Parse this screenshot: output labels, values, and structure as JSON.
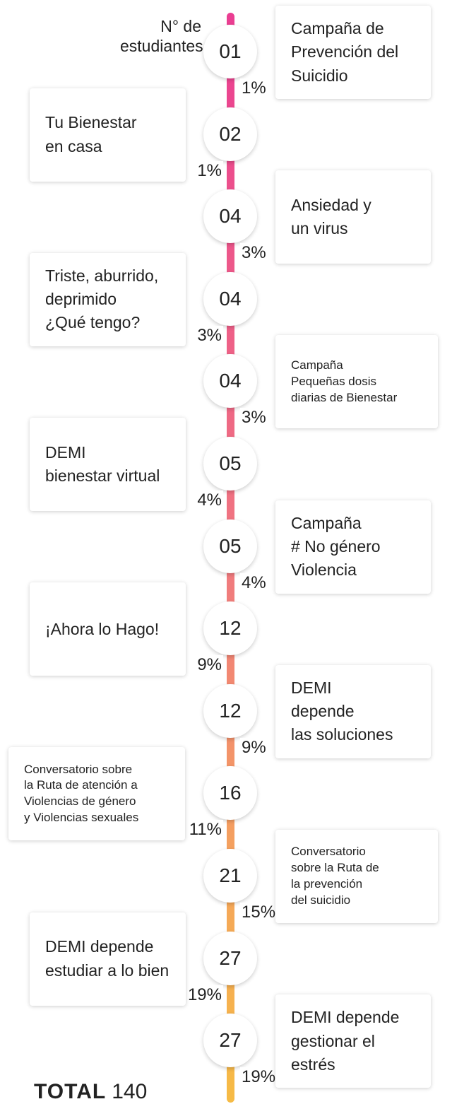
{
  "header": {
    "lines": [
      "N° de",
      "estudiantes"
    ]
  },
  "items": [
    {
      "count": "01",
      "percent": "1%",
      "lines": [
        "Campaña de",
        "Prevención del",
        "Suicidio"
      ]
    },
    {
      "count": "02",
      "percent": "1%",
      "lines": [
        "Tu Bienestar",
        "en casa"
      ]
    },
    {
      "count": "04",
      "percent": "3%",
      "lines": [
        "Ansiedad y",
        "un virus"
      ]
    },
    {
      "count": "04",
      "percent": "3%",
      "lines": [
        "Triste, aburrido,",
        "deprimido",
        "¿Qué tengo?"
      ]
    },
    {
      "count": "04",
      "percent": "3%",
      "lines": [
        "Campaña",
        "Pequeñas dosis",
        "diarias de Bienestar"
      ]
    },
    {
      "count": "05",
      "percent": "4%",
      "lines": [
        "DEMI",
        "bienestar virtual"
      ]
    },
    {
      "count": "05",
      "percent": "4%",
      "lines": [
        "Campaña",
        "# No género",
        "Violencia"
      ]
    },
    {
      "count": "12",
      "percent": "9%",
      "lines": [
        "¡Ahora lo Hago!"
      ]
    },
    {
      "count": "12",
      "percent": "9%",
      "lines": [
        "DEMI",
        "depende",
        "las soluciones"
      ]
    },
    {
      "count": "16",
      "percent": "11%",
      "lines": [
        "Conversatorio sobre",
        "la Ruta de atención a",
        "Violencias de género",
        "y Violencias sexuales"
      ]
    },
    {
      "count": "21",
      "percent": "15%",
      "lines": [
        "Conversatorio",
        "sobre la Ruta de",
        "la prevención",
        "del suicidio"
      ]
    },
    {
      "count": "27",
      "percent": "19%",
      "lines": [
        "DEMI depende",
        "estudiar a lo bien"
      ]
    },
    {
      "count": "27",
      "percent": "19%",
      "lines": [
        "DEMI depende",
        "gestionar el estrés"
      ]
    }
  ],
  "total": {
    "label": "TOTAL",
    "value": "140"
  }
}
